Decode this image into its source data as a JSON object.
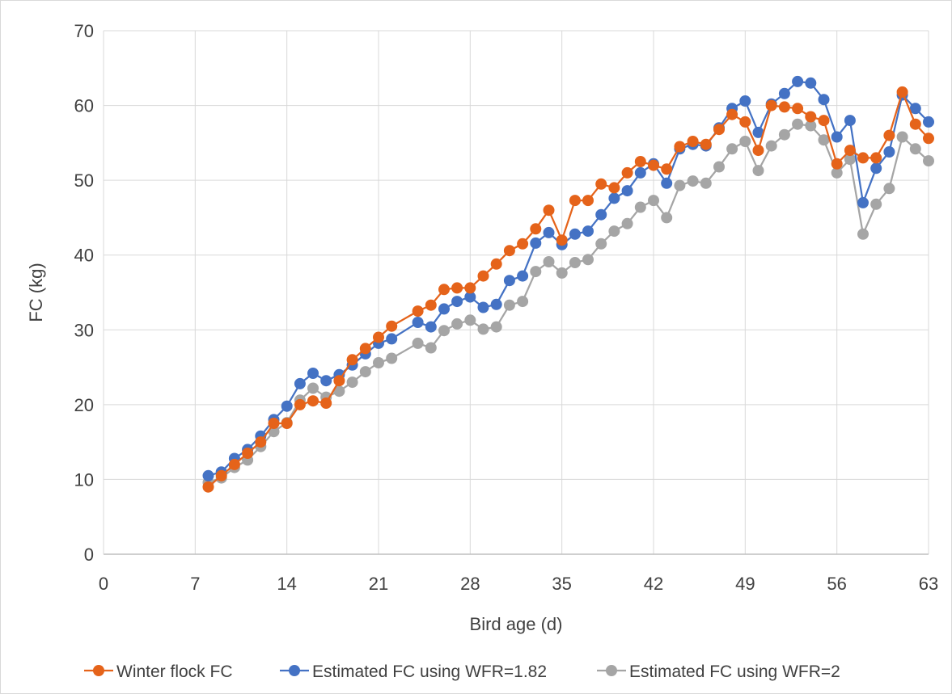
{
  "chart_data": {
    "type": "line",
    "title": "",
    "xlabel": "Bird age (d)",
    "ylabel": "FC (kg)",
    "xlim": [
      0,
      63
    ],
    "ylim": [
      0,
      70
    ],
    "x_ticks": [
      "0",
      "7",
      "14",
      "21",
      "28",
      "35",
      "42",
      "49",
      "56",
      "63"
    ],
    "y_ticks": [
      "0",
      "10",
      "20",
      "30",
      "40",
      "50",
      "60",
      "70"
    ],
    "grid": true,
    "legend_position": "bottom",
    "x": [
      8,
      9,
      10,
      11,
      12,
      13,
      14,
      15,
      16,
      17,
      18,
      19,
      20,
      21,
      22,
      24,
      25,
      26,
      27,
      28,
      29,
      30,
      31,
      32,
      33,
      34,
      35,
      36,
      37,
      38,
      39,
      40,
      41,
      42,
      43,
      44,
      45,
      46,
      47,
      48,
      49,
      50,
      51,
      52,
      53,
      54,
      55,
      56,
      57,
      58,
      59,
      60,
      61,
      62,
      63
    ],
    "series": [
      {
        "name": "Winter flock FC",
        "color": "#E5631A",
        "values": [
          9.0,
          10.5,
          12.0,
          13.5,
          15.0,
          17.5,
          17.5,
          20.0,
          20.5,
          20.2,
          23.2,
          26.0,
          27.5,
          29.0,
          30.5,
          32.5,
          33.3,
          35.4,
          35.6,
          35.6,
          37.2,
          38.8,
          40.6,
          41.5,
          43.5,
          46.0,
          42.0,
          47.3,
          47.3,
          49.5,
          49.0,
          51.0,
          52.5,
          52.0,
          51.5,
          54.5,
          55.2,
          54.8,
          56.8,
          58.8,
          57.8,
          54.0,
          60.0,
          59.8,
          59.6,
          58.5,
          58.0,
          52.2,
          54.0,
          53.0,
          53.0,
          56.0,
          61.8,
          57.5,
          55.6
        ]
      },
      {
        "name": "Estimated FC using WFR=1.82",
        "color": "#4472C4",
        "values": [
          10.5,
          11.0,
          12.8,
          14.0,
          15.8,
          18.0,
          19.8,
          22.8,
          24.2,
          23.2,
          24.0,
          25.3,
          26.8,
          28.2,
          28.8,
          31.0,
          30.4,
          32.8,
          33.8,
          34.4,
          33.0,
          33.4,
          36.6,
          37.2,
          41.6,
          43.0,
          41.4,
          42.8,
          43.2,
          45.4,
          47.6,
          48.6,
          51.0,
          52.2,
          49.6,
          54.2,
          54.8,
          54.6,
          57.0,
          59.6,
          60.6,
          56.4,
          60.2,
          61.6,
          63.2,
          63.0,
          60.8,
          55.8,
          58.0,
          47.0,
          51.6,
          53.8,
          61.4,
          59.6,
          57.8
        ]
      },
      {
        "name": "Estimated FC using WFR=2",
        "color": "#A5A5A5",
        "values": [
          9.6,
          10.2,
          11.6,
          12.6,
          14.4,
          16.4,
          17.6,
          20.6,
          22.2,
          21.0,
          21.8,
          23.0,
          24.4,
          25.6,
          26.2,
          28.2,
          27.6,
          29.9,
          30.8,
          31.3,
          30.1,
          30.4,
          33.3,
          33.8,
          37.8,
          39.1,
          37.6,
          39.0,
          39.4,
          41.5,
          43.2,
          44.2,
          46.4,
          47.3,
          45.0,
          49.3,
          49.9,
          49.6,
          51.8,
          54.2,
          55.2,
          51.3,
          54.6,
          56.1,
          57.5,
          57.3,
          55.4,
          51.0,
          52.8,
          42.8,
          46.8,
          48.9,
          55.8,
          54.2,
          52.6
        ]
      }
    ]
  }
}
